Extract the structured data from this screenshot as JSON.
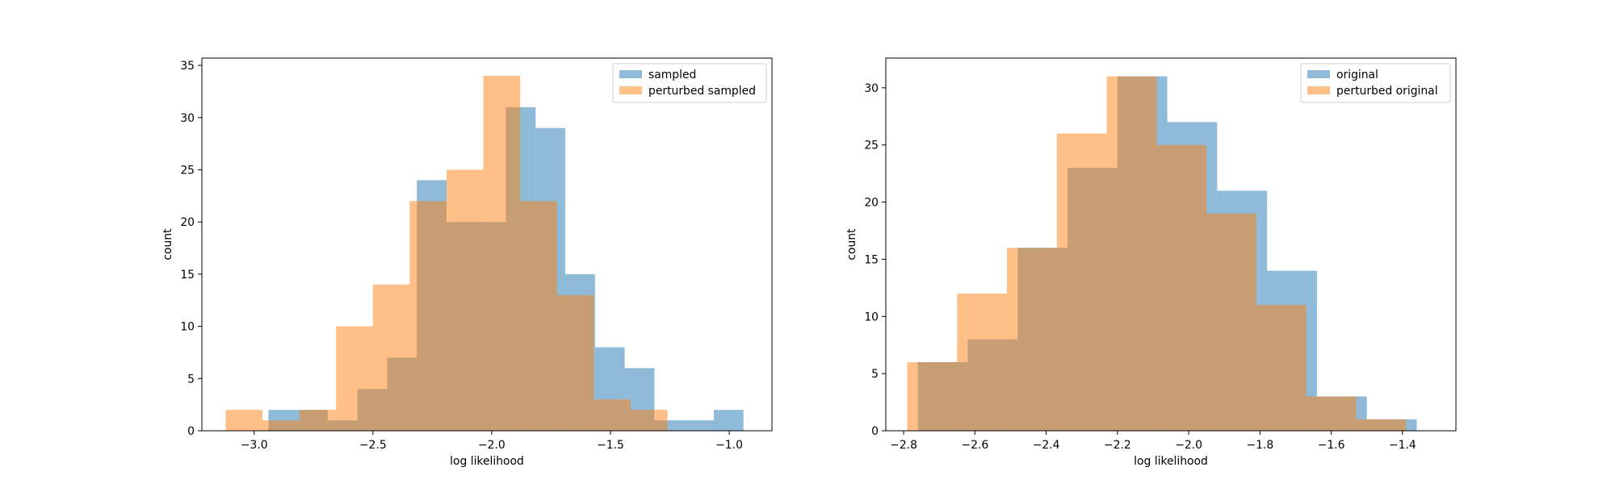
{
  "chart_data": [
    {
      "type": "histogram",
      "xlabel": "log likelihood",
      "ylabel": "count",
      "xlim": [
        -3.22,
        -0.82
      ],
      "ylim": [
        0,
        35.7
      ],
      "xticks": [
        -3.0,
        -2.5,
        -2.0,
        -1.5,
        -1.0
      ],
      "xtick_labels": [
        "−3.0",
        "−2.5",
        "−2.0",
        "−1.5",
        "−1.0"
      ],
      "yticks": [
        0,
        5,
        10,
        15,
        20,
        25,
        30,
        35
      ],
      "ytick_labels": [
        "0",
        "5",
        "10",
        "15",
        "20",
        "25",
        "30",
        "35"
      ],
      "legend_position": "top-right",
      "series": [
        {
          "name": "sampled",
          "color": "#1f77b4",
          "alpha": 0.5,
          "bins": [
            {
              "x0": -2.94,
              "x1": -2.815,
              "count": 2
            },
            {
              "x0": -2.815,
              "x1": -2.69,
              "count": 2
            },
            {
              "x0": -2.69,
              "x1": -2.565,
              "count": 1
            },
            {
              "x0": -2.565,
              "x1": -2.44,
              "count": 4
            },
            {
              "x0": -2.44,
              "x1": -2.315,
              "count": 7
            },
            {
              "x0": -2.315,
              "x1": -2.19,
              "count": 24
            },
            {
              "x0": -2.19,
              "x1": -2.065,
              "count": 20
            },
            {
              "x0": -2.065,
              "x1": -1.94,
              "count": 20
            },
            {
              "x0": -1.94,
              "x1": -1.815,
              "count": 31
            },
            {
              "x0": -1.815,
              "x1": -1.69,
              "count": 29
            },
            {
              "x0": -1.69,
              "x1": -1.565,
              "count": 15
            },
            {
              "x0": -1.565,
              "x1": -1.44,
              "count": 8
            },
            {
              "x0": -1.44,
              "x1": -1.315,
              "count": 6
            },
            {
              "x0": -1.315,
              "x1": -1.19,
              "count": 1
            },
            {
              "x0": -1.19,
              "x1": -1.065,
              "count": 1
            },
            {
              "x0": -1.065,
              "x1": -0.94,
              "count": 2
            }
          ]
        },
        {
          "name": "perturbed sampled",
          "color": "#ff7f0e",
          "alpha": 0.5,
          "bins": [
            {
              "x0": -3.12,
              "x1": -2.965,
              "count": 2
            },
            {
              "x0": -2.965,
              "x1": -2.81,
              "count": 1
            },
            {
              "x0": -2.81,
              "x1": -2.655,
              "count": 2
            },
            {
              "x0": -2.655,
              "x1": -2.5,
              "count": 10
            },
            {
              "x0": -2.5,
              "x1": -2.345,
              "count": 14
            },
            {
              "x0": -2.345,
              "x1": -2.19,
              "count": 22
            },
            {
              "x0": -2.19,
              "x1": -2.035,
              "count": 25
            },
            {
              "x0": -2.035,
              "x1": -1.88,
              "count": 34
            },
            {
              "x0": -1.88,
              "x1": -1.725,
              "count": 22
            },
            {
              "x0": -1.725,
              "x1": -1.57,
              "count": 13
            },
            {
              "x0": -1.57,
              "x1": -1.415,
              "count": 3
            },
            {
              "x0": -1.415,
              "x1": -1.26,
              "count": 2
            }
          ]
        }
      ]
    },
    {
      "type": "histogram",
      "xlabel": "log likelihood",
      "ylabel": "count",
      "xlim": [
        -2.85,
        -1.25
      ],
      "ylim": [
        0,
        32.6
      ],
      "xticks": [
        -2.8,
        -2.6,
        -2.4,
        -2.2,
        -2.0,
        -1.8,
        -1.6,
        -1.4
      ],
      "xtick_labels": [
        "−2.8",
        "−2.6",
        "−2.4",
        "−2.2",
        "−2.0",
        "−1.8",
        "−1.6",
        "−1.4"
      ],
      "yticks": [
        0,
        5,
        10,
        15,
        20,
        25,
        30
      ],
      "ytick_labels": [
        "0",
        "5",
        "10",
        "15",
        "20",
        "25",
        "30"
      ],
      "legend_position": "top-right",
      "series": [
        {
          "name": "original",
          "color": "#1f77b4",
          "alpha": 0.5,
          "bins": [
            {
              "x0": -2.76,
              "x1": -2.62,
              "count": 6
            },
            {
              "x0": -2.62,
              "x1": -2.48,
              "count": 8
            },
            {
              "x0": -2.48,
              "x1": -2.34,
              "count": 16
            },
            {
              "x0": -2.34,
              "x1": -2.2,
              "count": 23
            },
            {
              "x0": -2.2,
              "x1": -2.06,
              "count": 31
            },
            {
              "x0": -2.06,
              "x1": -1.92,
              "count": 27
            },
            {
              "x0": -1.92,
              "x1": -1.78,
              "count": 21
            },
            {
              "x0": -1.78,
              "x1": -1.64,
              "count": 14
            },
            {
              "x0": -1.64,
              "x1": -1.5,
              "count": 3
            },
            {
              "x0": -1.5,
              "x1": -1.36,
              "count": 1
            }
          ]
        },
        {
          "name": "perturbed original",
          "color": "#ff7f0e",
          "alpha": 0.5,
          "bins": [
            {
              "x0": -2.79,
              "x1": -2.65,
              "count": 6
            },
            {
              "x0": -2.65,
              "x1": -2.51,
              "count": 12
            },
            {
              "x0": -2.51,
              "x1": -2.37,
              "count": 16
            },
            {
              "x0": -2.37,
              "x1": -2.23,
              "count": 26
            },
            {
              "x0": -2.23,
              "x1": -2.09,
              "count": 31
            },
            {
              "x0": -2.09,
              "x1": -1.95,
              "count": 25
            },
            {
              "x0": -1.95,
              "x1": -1.81,
              "count": 19
            },
            {
              "x0": -1.81,
              "x1": -1.67,
              "count": 11
            },
            {
              "x0": -1.67,
              "x1": -1.53,
              "count": 3
            },
            {
              "x0": -1.53,
              "x1": -1.39,
              "count": 1
            }
          ]
        }
      ]
    }
  ]
}
